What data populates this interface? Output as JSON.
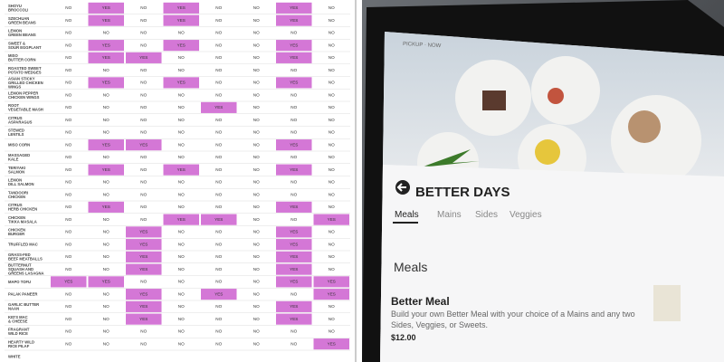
{
  "table": {
    "rows": [
      {
        "name": [
          "SHOYU",
          "BROCCOLI"
        ],
        "cells": [
          "NO",
          "YES",
          "NO",
          "YES",
          "NO",
          "NO",
          "YES",
          "NO"
        ]
      },
      {
        "name": [
          "SZECHUAN",
          "GREEN BEANS"
        ],
        "cells": [
          "NO",
          "YES",
          "NO",
          "YES",
          "NO",
          "NO",
          "YES",
          "NO"
        ]
      },
      {
        "name": [
          "LEMON",
          "GREEN BEANS"
        ],
        "cells": [
          "NO",
          "NO",
          "NO",
          "NO",
          "NO",
          "NO",
          "NO",
          "NO"
        ]
      },
      {
        "name": [
          "SWEET &",
          "SOUR EGGPLANT"
        ],
        "cells": [
          "NO",
          "YES",
          "NO",
          "YES",
          "NO",
          "NO",
          "YES",
          "NO"
        ]
      },
      {
        "name": [
          "MISO",
          "BUTTER CORN"
        ],
        "cells": [
          "NO",
          "YES",
          "YES",
          "NO",
          "NO",
          "NO",
          "YES",
          "NO"
        ]
      },
      {
        "name": [
          "ROASTED SWEET",
          "POTATO WEDGES"
        ],
        "cells": [
          "NO",
          "NO",
          "NO",
          "NO",
          "NO",
          "NO",
          "NO",
          "NO"
        ]
      },
      {
        "name": [
          "ASIAN STICKY",
          "GRILLED CHICKEN",
          "WINGS"
        ],
        "cells": [
          "NO",
          "YES",
          "NO",
          "YES",
          "NO",
          "NO",
          "YES",
          "NO"
        ]
      },
      {
        "name": [
          "LEMON PEPPER",
          "CHICKEN WINGS"
        ],
        "cells": [
          "NO",
          "NO",
          "NO",
          "NO",
          "NO",
          "NO",
          "NO",
          "NO"
        ]
      },
      {
        "name": [
          "ROOT",
          "VEGETABLE MASH"
        ],
        "cells": [
          "NO",
          "NO",
          "NO",
          "NO",
          "YES",
          "NO",
          "NO",
          "NO"
        ]
      },
      {
        "name": [
          "CITRUS",
          "ASPARAGUS"
        ],
        "cells": [
          "NO",
          "NO",
          "NO",
          "NO",
          "NO",
          "NO",
          "NO",
          "NO"
        ]
      },
      {
        "name": [
          "STEWED",
          "LENTILS"
        ],
        "cells": [
          "NO",
          "NO",
          "NO",
          "NO",
          "NO",
          "NO",
          "NO",
          "NO"
        ]
      },
      {
        "name": [
          "MISO CORN"
        ],
        "cells": [
          "NO",
          "YES",
          "YES",
          "NO",
          "NO",
          "NO",
          "YES",
          "NO"
        ]
      },
      {
        "name": [
          "MASSAGED",
          "KALE"
        ],
        "cells": [
          "NO",
          "NO",
          "NO",
          "NO",
          "NO",
          "NO",
          "NO",
          "NO"
        ]
      },
      {
        "name": [
          "TERIYAKI",
          "SALMON"
        ],
        "cells": [
          "NO",
          "YES",
          "NO",
          "YES",
          "NO",
          "NO",
          "YES",
          "NO"
        ]
      },
      {
        "name": [
          "LEMON",
          "DILL SALMON"
        ],
        "cells": [
          "NO",
          "NO",
          "NO",
          "NO",
          "NO",
          "NO",
          "NO",
          "NO"
        ]
      },
      {
        "name": [
          "TANDOORI",
          "CHICKEN"
        ],
        "cells": [
          "NO",
          "NO",
          "NO",
          "NO",
          "NO",
          "NO",
          "NO",
          "NO"
        ]
      },
      {
        "name": [
          "CITRUS",
          "HERB CHICKEN"
        ],
        "cells": [
          "NO",
          "YES",
          "NO",
          "NO",
          "NO",
          "NO",
          "YES",
          "NO"
        ]
      },
      {
        "name": [
          "CHICKEN",
          "TIKKA MASALA"
        ],
        "cells": [
          "NO",
          "NO",
          "NO",
          "YES",
          "YES",
          "NO",
          "NO",
          "YES"
        ]
      },
      {
        "name": [
          "CHICKEN",
          "BURGER"
        ],
        "cells": [
          "NO",
          "NO",
          "YES",
          "NO",
          "NO",
          "NO",
          "YES",
          "NO"
        ]
      },
      {
        "name": [
          "TRUFFLED MAC"
        ],
        "cells": [
          "NO",
          "NO",
          "YES",
          "NO",
          "NO",
          "NO",
          "YES",
          "NO"
        ]
      },
      {
        "name": [
          "GRASS-FED",
          "BEEF MEATBALLS"
        ],
        "cells": [
          "NO",
          "NO",
          "YES",
          "NO",
          "NO",
          "NO",
          "YES",
          "NO"
        ]
      },
      {
        "name": [
          "BUTTERNUT",
          "SQUASH AND",
          "GREENS LASAGNA"
        ],
        "cells": [
          "NO",
          "NO",
          "YES",
          "NO",
          "NO",
          "NO",
          "YES",
          "NO"
        ]
      },
      {
        "name": [
          "MAPO TOFU"
        ],
        "cells": [
          "YES",
          "YES",
          "NO",
          "NO",
          "NO",
          "NO",
          "YES",
          "YES"
        ]
      },
      {
        "name": [
          "PALAK PANEER"
        ],
        "cells": [
          "NO",
          "NO",
          "YES",
          "NO",
          "YES",
          "NO",
          "NO",
          "YES"
        ]
      },
      {
        "name": [
          "GARLIC BUTTER",
          "NAAN"
        ],
        "cells": [
          "NO",
          "NO",
          "YES",
          "NO",
          "NO",
          "NO",
          "YES",
          "NO"
        ]
      },
      {
        "name": [
          "KID'S MAC",
          "& CHEESE"
        ],
        "cells": [
          "NO",
          "NO",
          "YES",
          "NO",
          "NO",
          "NO",
          "YES",
          "NO"
        ]
      },
      {
        "name": [
          "FRAGRANT",
          "WILD RICE"
        ],
        "cells": [
          "NO",
          "NO",
          "NO",
          "NO",
          "NO",
          "NO",
          "NO",
          "NO"
        ]
      },
      {
        "name": [
          "HEARTY WILD",
          "RICE PILAF"
        ],
        "cells": [
          "NO",
          "NO",
          "NO",
          "NO",
          "NO",
          "NO",
          "NO",
          "YES"
        ]
      },
      {
        "name": [
          "WHITE"
        ],
        "cells": []
      }
    ]
  },
  "kiosk": {
    "pickup": "PICKUP · NOW",
    "brand": "BETTER DAYS",
    "tabs": [
      "Meals",
      "Mains",
      "Sides",
      "Veggies"
    ],
    "section": "Meals",
    "item": {
      "name": "Better Meal",
      "description": [
        "Build your own Better Meal with your choice of a Mains and any two",
        "Sides, Veggies, or Sweets."
      ],
      "price": "$12.00"
    }
  }
}
